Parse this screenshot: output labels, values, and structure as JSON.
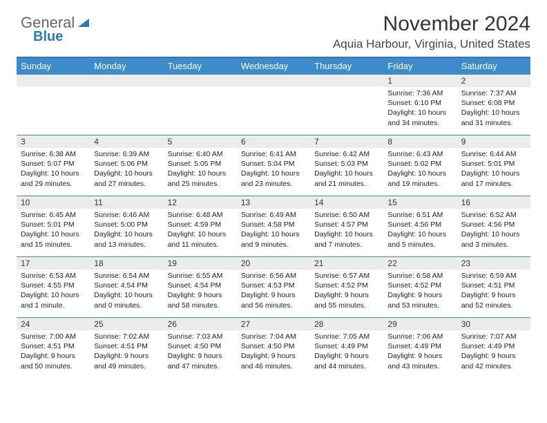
{
  "brand": {
    "part1": "General",
    "part2": "Blue"
  },
  "title": "November 2024",
  "location": "Aquia Harbour, Virginia, United States",
  "colors": {
    "header_bg": "#3d8cc9",
    "header_border": "#2b78c1",
    "daynum_bg": "#ececec",
    "cell_border": "#3d8cc9",
    "text": "#222222",
    "title_text": "#333333"
  },
  "weekdays": [
    "Sunday",
    "Monday",
    "Tuesday",
    "Wednesday",
    "Thursday",
    "Friday",
    "Saturday"
  ],
  "weeks": [
    [
      {
        "num": "",
        "lines": []
      },
      {
        "num": "",
        "lines": []
      },
      {
        "num": "",
        "lines": []
      },
      {
        "num": "",
        "lines": []
      },
      {
        "num": "",
        "lines": []
      },
      {
        "num": "1",
        "lines": [
          "Sunrise: 7:36 AM",
          "Sunset: 6:10 PM",
          "Daylight: 10 hours and 34 minutes."
        ]
      },
      {
        "num": "2",
        "lines": [
          "Sunrise: 7:37 AM",
          "Sunset: 6:08 PM",
          "Daylight: 10 hours and 31 minutes."
        ]
      }
    ],
    [
      {
        "num": "3",
        "lines": [
          "Sunrise: 6:38 AM",
          "Sunset: 5:07 PM",
          "Daylight: 10 hours and 29 minutes."
        ]
      },
      {
        "num": "4",
        "lines": [
          "Sunrise: 6:39 AM",
          "Sunset: 5:06 PM",
          "Daylight: 10 hours and 27 minutes."
        ]
      },
      {
        "num": "5",
        "lines": [
          "Sunrise: 6:40 AM",
          "Sunset: 5:05 PM",
          "Daylight: 10 hours and 25 minutes."
        ]
      },
      {
        "num": "6",
        "lines": [
          "Sunrise: 6:41 AM",
          "Sunset: 5:04 PM",
          "Daylight: 10 hours and 23 minutes."
        ]
      },
      {
        "num": "7",
        "lines": [
          "Sunrise: 6:42 AM",
          "Sunset: 5:03 PM",
          "Daylight: 10 hours and 21 minutes."
        ]
      },
      {
        "num": "8",
        "lines": [
          "Sunrise: 6:43 AM",
          "Sunset: 5:02 PM",
          "Daylight: 10 hours and 19 minutes."
        ]
      },
      {
        "num": "9",
        "lines": [
          "Sunrise: 6:44 AM",
          "Sunset: 5:01 PM",
          "Daylight: 10 hours and 17 minutes."
        ]
      }
    ],
    [
      {
        "num": "10",
        "lines": [
          "Sunrise: 6:45 AM",
          "Sunset: 5:01 PM",
          "Daylight: 10 hours and 15 minutes."
        ]
      },
      {
        "num": "11",
        "lines": [
          "Sunrise: 6:46 AM",
          "Sunset: 5:00 PM",
          "Daylight: 10 hours and 13 minutes."
        ]
      },
      {
        "num": "12",
        "lines": [
          "Sunrise: 6:48 AM",
          "Sunset: 4:59 PM",
          "Daylight: 10 hours and 11 minutes."
        ]
      },
      {
        "num": "13",
        "lines": [
          "Sunrise: 6:49 AM",
          "Sunset: 4:58 PM",
          "Daylight: 10 hours and 9 minutes."
        ]
      },
      {
        "num": "14",
        "lines": [
          "Sunrise: 6:50 AM",
          "Sunset: 4:57 PM",
          "Daylight: 10 hours and 7 minutes."
        ]
      },
      {
        "num": "15",
        "lines": [
          "Sunrise: 6:51 AM",
          "Sunset: 4:56 PM",
          "Daylight: 10 hours and 5 minutes."
        ]
      },
      {
        "num": "16",
        "lines": [
          "Sunrise: 6:52 AM",
          "Sunset: 4:56 PM",
          "Daylight: 10 hours and 3 minutes."
        ]
      }
    ],
    [
      {
        "num": "17",
        "lines": [
          "Sunrise: 6:53 AM",
          "Sunset: 4:55 PM",
          "Daylight: 10 hours and 1 minute."
        ]
      },
      {
        "num": "18",
        "lines": [
          "Sunrise: 6:54 AM",
          "Sunset: 4:54 PM",
          "Daylight: 10 hours and 0 minutes."
        ]
      },
      {
        "num": "19",
        "lines": [
          "Sunrise: 6:55 AM",
          "Sunset: 4:54 PM",
          "Daylight: 9 hours and 58 minutes."
        ]
      },
      {
        "num": "20",
        "lines": [
          "Sunrise: 6:56 AM",
          "Sunset: 4:53 PM",
          "Daylight: 9 hours and 56 minutes."
        ]
      },
      {
        "num": "21",
        "lines": [
          "Sunrise: 6:57 AM",
          "Sunset: 4:52 PM",
          "Daylight: 9 hours and 55 minutes."
        ]
      },
      {
        "num": "22",
        "lines": [
          "Sunrise: 6:58 AM",
          "Sunset: 4:52 PM",
          "Daylight: 9 hours and 53 minutes."
        ]
      },
      {
        "num": "23",
        "lines": [
          "Sunrise: 6:59 AM",
          "Sunset: 4:51 PM",
          "Daylight: 9 hours and 52 minutes."
        ]
      }
    ],
    [
      {
        "num": "24",
        "lines": [
          "Sunrise: 7:00 AM",
          "Sunset: 4:51 PM",
          "Daylight: 9 hours and 50 minutes."
        ]
      },
      {
        "num": "25",
        "lines": [
          "Sunrise: 7:02 AM",
          "Sunset: 4:51 PM",
          "Daylight: 9 hours and 49 minutes."
        ]
      },
      {
        "num": "26",
        "lines": [
          "Sunrise: 7:03 AM",
          "Sunset: 4:50 PM",
          "Daylight: 9 hours and 47 minutes."
        ]
      },
      {
        "num": "27",
        "lines": [
          "Sunrise: 7:04 AM",
          "Sunset: 4:50 PM",
          "Daylight: 9 hours and 46 minutes."
        ]
      },
      {
        "num": "28",
        "lines": [
          "Sunrise: 7:05 AM",
          "Sunset: 4:49 PM",
          "Daylight: 9 hours and 44 minutes."
        ]
      },
      {
        "num": "29",
        "lines": [
          "Sunrise: 7:06 AM",
          "Sunset: 4:49 PM",
          "Daylight: 9 hours and 43 minutes."
        ]
      },
      {
        "num": "30",
        "lines": [
          "Sunrise: 7:07 AM",
          "Sunset: 4:49 PM",
          "Daylight: 9 hours and 42 minutes."
        ]
      }
    ]
  ]
}
